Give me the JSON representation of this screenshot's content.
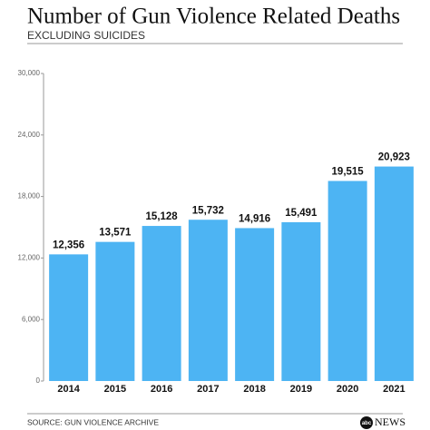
{
  "chart_data": {
    "type": "bar",
    "title": "Number of Gun Violence Related Deaths",
    "subtitle": "EXCLUDING SUICIDES",
    "source": "SOURCE: GUN VIOLENCE ARCHIVE",
    "logo": [
      "abc",
      "NEWS"
    ],
    "categories": [
      "2014",
      "2015",
      "2016",
      "2017",
      "2018",
      "2019",
      "2020",
      "2021"
    ],
    "values": [
      12356,
      13571,
      15128,
      15732,
      14916,
      15491,
      19515,
      20923
    ],
    "value_labels": [
      "12,356",
      "13,571",
      "15,128",
      "15,732",
      "14,916",
      "15,491",
      "19,515",
      "20,923"
    ],
    "color": "#4db4f3",
    "ylim": [
      0,
      30000
    ],
    "yticks": [
      0,
      {
        "value": 6000,
        "label": "6,000"
      },
      {
        "value": 12000,
        "label": "12,000"
      },
      {
        "value": 18000,
        "label": "18,000"
      },
      {
        "value": 24000,
        "label": "24,000"
      },
      {
        "value": 30000,
        "label": "30,000"
      }
    ],
    "grid": false
  }
}
